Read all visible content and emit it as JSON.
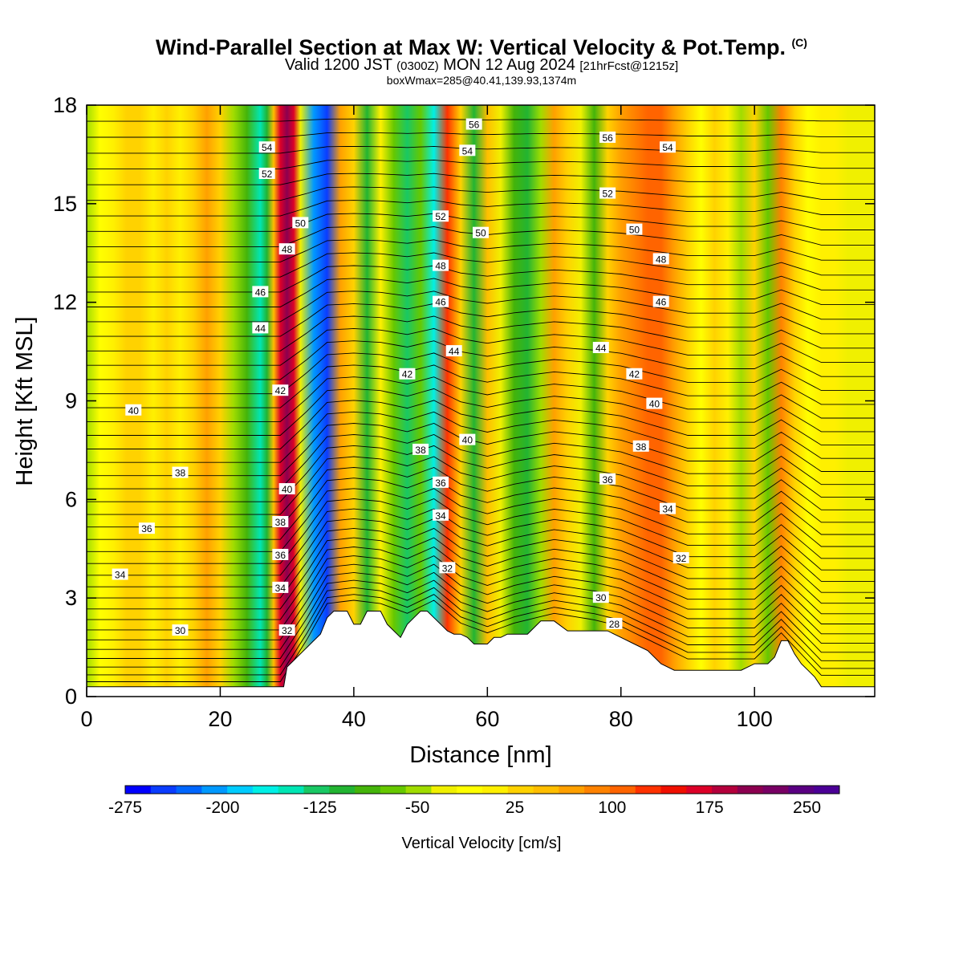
{
  "title": {
    "main": "Wind-Parallel Section at Max W: Vertical Velocity & Pot.Temp.",
    "mark": "(C)",
    "valid_prefix": "Valid 1200 JST",
    "valid_z": "(0300Z)",
    "valid_date": "MON 12 Aug 2024",
    "valid_fcst": "[21hrFcst@1215z]",
    "box": "boxWmax=285@40.41,139.93,1374m"
  },
  "chart_data": {
    "type": "heatmap",
    "xlabel": "Distance [nm]",
    "ylabel": "Height [Kft MSL]",
    "xlim": [
      0,
      118
    ],
    "ylim": [
      0,
      18
    ],
    "x_ticks": [
      0,
      20,
      40,
      60,
      80,
      100
    ],
    "y_ticks": [
      0,
      3,
      6,
      9,
      12,
      15,
      18
    ],
    "grid": false,
    "w_columns": {
      "distance_nm": [
        0,
        2,
        4,
        6,
        8,
        10,
        12,
        14,
        16,
        18,
        20,
        22,
        24,
        26,
        27,
        28,
        29,
        30,
        31,
        32,
        34,
        36,
        38,
        40,
        42,
        44,
        46,
        48,
        50,
        52,
        54,
        56,
        58,
        60,
        62,
        64,
        66,
        68,
        70,
        72,
        74,
        76,
        78,
        80,
        82,
        84,
        86,
        88,
        90,
        92,
        94,
        96,
        98,
        100,
        102,
        104,
        106,
        108,
        110,
        112,
        114,
        116,
        118
      ],
      "vertical_velocity_cms": [
        -40,
        -15,
        5,
        25,
        30,
        15,
        20,
        10,
        35,
        60,
        20,
        -40,
        -90,
        -140,
        -110,
        40,
        170,
        210,
        160,
        -30,
        -200,
        -240,
        60,
        20,
        -100,
        10,
        -60,
        -130,
        -60,
        -160,
        120,
        20,
        -100,
        40,
        -20,
        -90,
        -110,
        -40,
        60,
        20,
        -30,
        -80,
        20,
        60,
        80,
        100,
        110,
        60,
        30,
        -10,
        20,
        10,
        -40,
        30,
        -60,
        80,
        20,
        -10,
        10,
        0,
        -20,
        -30,
        -30
      ]
    },
    "terrain": {
      "distance_nm": [
        0,
        29.5,
        30,
        31,
        32,
        33,
        34,
        35,
        36,
        37,
        39,
        40,
        41,
        42,
        44,
        45,
        46,
        47,
        48,
        49,
        50,
        51,
        52,
        53,
        54,
        55,
        56,
        57,
        58,
        59,
        60,
        61,
        62,
        63,
        64,
        65,
        66,
        67,
        68,
        69,
        70,
        72,
        74,
        76,
        78,
        80,
        82,
        84,
        86,
        88,
        90,
        92,
        94,
        96,
        98,
        100,
        102,
        103,
        104,
        105,
        106,
        107,
        108,
        109,
        110,
        118
      ],
      "height_kft": [
        0.3,
        0.3,
        0.9,
        1.1,
        1.3,
        1.5,
        1.7,
        1.9,
        2.4,
        2.6,
        2.6,
        2.2,
        2.2,
        2.6,
        2.6,
        2.2,
        2.0,
        1.8,
        2.2,
        2.4,
        2.6,
        2.6,
        2.4,
        2.2,
        2.0,
        1.9,
        1.9,
        1.8,
        1.6,
        1.6,
        1.6,
        1.8,
        1.8,
        1.9,
        1.9,
        1.9,
        1.9,
        2.1,
        2.3,
        2.3,
        2.3,
        2.0,
        2.0,
        2.0,
        2.0,
        1.8,
        1.6,
        1.4,
        1.0,
        0.8,
        0.8,
        0.8,
        0.8,
        0.8,
        0.8,
        1.0,
        1.0,
        1.2,
        1.7,
        1.7,
        1.3,
        1.0,
        0.8,
        0.6,
        0.3,
        0.3
      ]
    },
    "theta_contours": {
      "base_kft": [
        [
          0,
          0.3
        ],
        [
          20,
          0.3
        ],
        [
          29,
          0.3
        ],
        [
          33,
          1.6
        ],
        [
          36,
          2.7
        ],
        [
          40,
          2.8
        ],
        [
          44,
          2.7
        ],
        [
          48,
          2.4
        ],
        [
          52,
          2.8
        ],
        [
          56,
          2.1
        ],
        [
          60,
          1.8
        ],
        [
          64,
          2.1
        ],
        [
          70,
          2.4
        ],
        [
          76,
          2.2
        ],
        [
          80,
          2.0
        ],
        [
          90,
          1.0
        ],
        [
          100,
          1.0
        ],
        [
          104,
          1.8
        ],
        [
          110,
          0.5
        ],
        [
          118,
          0.5
        ]
      ],
      "top_kft": [
        [
          0,
          18
        ],
        [
          118,
          18
        ]
      ],
      "count": 44,
      "labels": [
        {
          "text": "54",
          "x": 27,
          "y": 16.7
        },
        {
          "text": "52",
          "x": 27,
          "y": 15.9
        },
        {
          "text": "50",
          "x": 32,
          "y": 14.4
        },
        {
          "text": "48",
          "x": 30,
          "y": 13.6
        },
        {
          "text": "46",
          "x": 26,
          "y": 12.3
        },
        {
          "text": "44",
          "x": 26,
          "y": 11.2
        },
        {
          "text": "42",
          "x": 29,
          "y": 9.3
        },
        {
          "text": "40",
          "x": 30,
          "y": 6.3
        },
        {
          "text": "38",
          "x": 29,
          "y": 5.3
        },
        {
          "text": "36",
          "x": 29,
          "y": 4.3
        },
        {
          "text": "34",
          "x": 29,
          "y": 3.3
        },
        {
          "text": "32",
          "x": 30,
          "y": 2.0
        },
        {
          "text": "40",
          "x": 7,
          "y": 8.7
        },
        {
          "text": "38",
          "x": 14,
          "y": 6.8
        },
        {
          "text": "36",
          "x": 9,
          "y": 5.1
        },
        {
          "text": "34",
          "x": 5,
          "y": 3.7
        },
        {
          "text": "30",
          "x": 14,
          "y": 2.0
        },
        {
          "text": "56",
          "x": 58,
          "y": 17.4
        },
        {
          "text": "54",
          "x": 57,
          "y": 16.6
        },
        {
          "text": "52",
          "x": 53,
          "y": 14.6
        },
        {
          "text": "50",
          "x": 59,
          "y": 14.1
        },
        {
          "text": "48",
          "x": 53,
          "y": 13.1
        },
        {
          "text": "46",
          "x": 53,
          "y": 12.0
        },
        {
          "text": "44",
          "x": 55,
          "y": 10.5
        },
        {
          "text": "42",
          "x": 48,
          "y": 9.8
        },
        {
          "text": "38",
          "x": 50,
          "y": 7.5
        },
        {
          "text": "40",
          "x": 57,
          "y": 7.8
        },
        {
          "text": "36",
          "x": 53,
          "y": 6.5
        },
        {
          "text": "34",
          "x": 53,
          "y": 5.5
        },
        {
          "text": "32",
          "x": 54,
          "y": 3.9
        },
        {
          "text": "56",
          "x": 78,
          "y": 17.0
        },
        {
          "text": "54",
          "x": 87,
          "y": 16.7
        },
        {
          "text": "52",
          "x": 78,
          "y": 15.3
        },
        {
          "text": "50",
          "x": 82,
          "y": 14.2
        },
        {
          "text": "48",
          "x": 86,
          "y": 13.3
        },
        {
          "text": "46",
          "x": 86,
          "y": 12.0
        },
        {
          "text": "44",
          "x": 77,
          "y": 10.6
        },
        {
          "text": "42",
          "x": 82,
          "y": 9.8
        },
        {
          "text": "40",
          "x": 85,
          "y": 8.9
        },
        {
          "text": "38",
          "x": 83,
          "y": 7.6
        },
        {
          "text": "36",
          "x": 78,
          "y": 6.6
        },
        {
          "text": "34",
          "x": 87,
          "y": 5.7
        },
        {
          "text": "32",
          "x": 89,
          "y": 4.2
        },
        {
          "text": "30",
          "x": 77,
          "y": 3.0
        },
        {
          "text": "28",
          "x": 79,
          "y": 2.2
        }
      ]
    },
    "colorbar": {
      "label": "Vertical Velocity [cm/s]",
      "min": -275,
      "max": 275,
      "tick_labels": [
        "-275",
        "-200",
        "-125",
        "-50",
        "25",
        "100",
        "175",
        "250"
      ],
      "tick_values": [
        -275,
        -200,
        -125,
        -50,
        25,
        100,
        175,
        250
      ],
      "colors": [
        "#0000ff",
        "#0a3cff",
        "#0066ff",
        "#0099ff",
        "#00ccff",
        "#00f0e6",
        "#00e6b4",
        "#19c864",
        "#22b432",
        "#44b40a",
        "#66c800",
        "#a0dc00",
        "#f0f000",
        "#ffff00",
        "#fff000",
        "#ffd200",
        "#ffbe00",
        "#ffa000",
        "#ff8200",
        "#ff6400",
        "#ff3200",
        "#f00f00",
        "#dc0028",
        "#b4003c",
        "#8c0050",
        "#780064",
        "#5a0082",
        "#4b0096"
      ]
    }
  }
}
